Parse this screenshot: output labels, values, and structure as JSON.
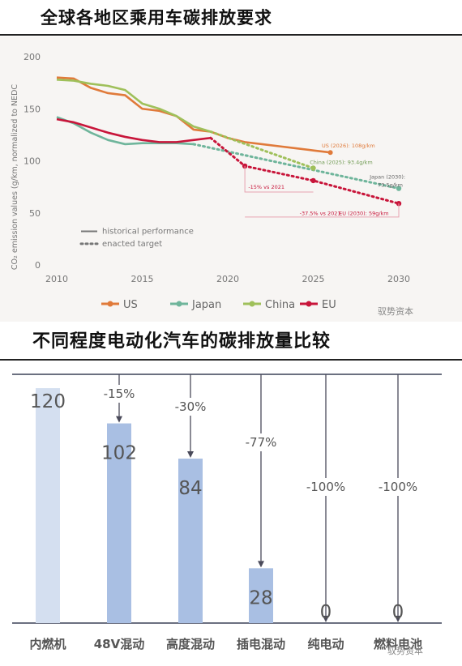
{
  "headings": {
    "title1": "全球各地区乘用车碳排放要求",
    "title2": "不同程度电动化汽车的碳排放量比较"
  },
  "watermark": "驭势资本",
  "colors": {
    "US": "#e07a3a",
    "Japan": "#6fb59b",
    "China": "#9fc05a",
    "EU": "#c8153a",
    "bar": "#a9bfe3",
    "bar_light": "#d4dff0",
    "axis": "#6b7080"
  },
  "chart_data": [
    {
      "type": "line",
      "ylabel": "CO₂ emission values (g/km, normalized to NEDC",
      "xlim": [
        2010,
        2030
      ],
      "ylim": [
        0,
        200
      ],
      "xticks": [
        2010,
        2015,
        2020,
        2025,
        2030
      ],
      "yticks": [
        0,
        50,
        100,
        150,
        200
      ],
      "grid": false,
      "legend": {
        "position": "bottom",
        "items": [
          "US",
          "Japan",
          "China",
          "EU"
        ]
      },
      "style_key": {
        "solid": "historical performance",
        "dotted": "enacted target"
      },
      "series": [
        {
          "name": "US",
          "x": [
            2010,
            2011,
            2012,
            2013,
            2014,
            2015,
            2016,
            2017,
            2018,
            2019,
            2020,
            2021,
            2022,
            2023,
            2024,
            2025,
            2026
          ],
          "values": [
            180,
            179,
            170,
            165,
            163,
            150,
            148,
            143,
            130,
            128,
            122,
            118,
            116,
            114,
            112,
            110,
            108
          ]
        },
        {
          "name": "Japan",
          "x": [
            2010,
            2011,
            2012,
            2013,
            2014,
            2015,
            2016,
            2017,
            2018
          ],
          "values": [
            142,
            136,
            127,
            120,
            116,
            117,
            117,
            117,
            116
          ]
        },
        {
          "name": "Japan target",
          "x": [
            2018,
            2030
          ],
          "values": [
            116,
            73.5
          ]
        },
        {
          "name": "China",
          "x": [
            2010,
            2011,
            2012,
            2013,
            2014,
            2015,
            2016,
            2017,
            2018,
            2019
          ],
          "values": [
            178,
            177,
            174,
            172,
            168,
            155,
            150,
            143,
            133,
            128
          ]
        },
        {
          "name": "China target",
          "x": [
            2019,
            2025
          ],
          "values": [
            128,
            93
          ]
        },
        {
          "name": "EU",
          "x": [
            2010,
            2011,
            2012,
            2013,
            2014,
            2015,
            2016,
            2017,
            2018,
            2019
          ],
          "values": [
            140,
            137,
            132,
            127,
            123,
            120,
            118,
            118,
            120,
            122
          ]
        },
        {
          "name": "EU target",
          "x": [
            2019,
            2021,
            2025,
            2030
          ],
          "values": [
            122,
            95,
            81,
            59
          ]
        }
      ],
      "annotations": [
        "US (2026): 108g/km",
        "China (2025): 93.4g/km",
        "Japan (2030): 73.5g/km",
        "-15% vs 2021",
        "-37.5% vs 2021",
        "EU (2030): 59g/km"
      ]
    },
    {
      "type": "bar",
      "categories": [
        "内燃机",
        "48V混动",
        "高度混动",
        "插电混动",
        "纯电动",
        "燃料电池"
      ],
      "values": [
        120,
        102,
        84,
        28,
        0,
        0
      ],
      "labels": [
        "120",
        "102",
        "84",
        "28",
        "0",
        "0"
      ],
      "reductions": [
        "",
        "-15%",
        "-30%",
        "-77%",
        "-100%",
        "-100%"
      ],
      "ylim": [
        0,
        125
      ]
    }
  ]
}
